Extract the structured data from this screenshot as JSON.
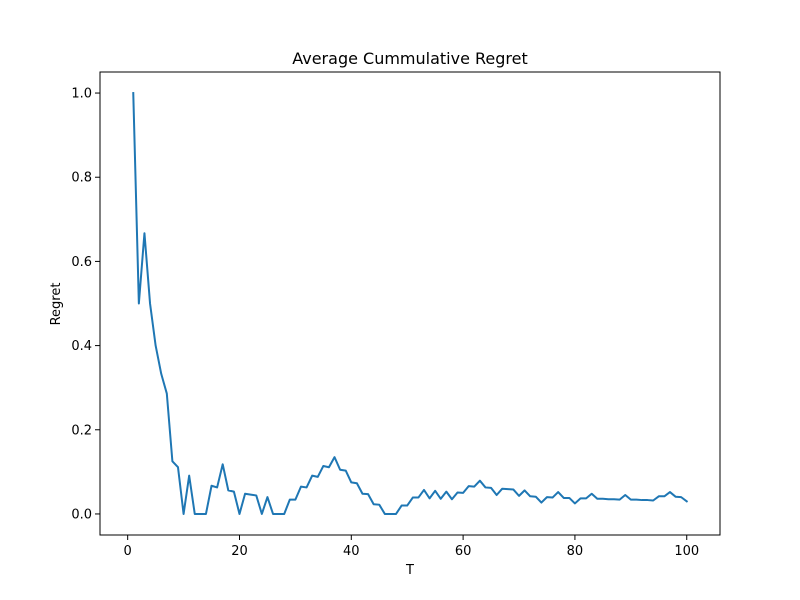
{
  "chart_data": {
    "type": "line",
    "title": "Average Cummulative Regret",
    "xlabel": "T",
    "ylabel": "Regret",
    "xlim": [
      -4.95,
      105.95
    ],
    "ylim": [
      -0.05,
      1.05
    ],
    "xticks": [
      0,
      20,
      40,
      60,
      80,
      100
    ],
    "xtick_labels": [
      "0",
      "20",
      "40",
      "60",
      "80",
      "100"
    ],
    "yticks": [
      0.0,
      0.2,
      0.4,
      0.6,
      0.8,
      1.0
    ],
    "ytick_labels": [
      "0.0",
      "0.2",
      "0.4",
      "0.6",
      "0.8",
      "1.0"
    ],
    "grid": false,
    "legend": "none",
    "series": [
      {
        "color": "#1f77b4",
        "x": [
          1,
          2,
          3,
          4,
          5,
          6,
          7,
          8,
          9,
          10,
          11,
          12,
          13,
          14,
          15,
          16,
          17,
          18,
          19,
          20,
          21,
          22,
          23,
          24,
          25,
          26,
          27,
          28,
          29,
          30,
          31,
          32,
          33,
          34,
          35,
          36,
          37,
          38,
          39,
          40,
          41,
          42,
          43,
          44,
          45,
          46,
          47,
          48,
          49,
          50,
          51,
          52,
          53,
          54,
          55,
          56,
          57,
          58,
          59,
          60,
          61,
          62,
          63,
          64,
          65,
          66,
          67,
          68,
          69,
          70,
          71,
          72,
          73,
          74,
          75,
          76,
          77,
          78,
          79,
          80,
          81,
          82,
          83,
          84,
          85,
          86,
          87,
          88,
          89,
          90,
          91,
          92,
          93,
          94,
          95,
          96,
          97,
          98,
          99,
          100
        ],
        "y": [
          1.0,
          0.5,
          0.667,
          0.5,
          0.4,
          0.333,
          0.286,
          0.125,
          0.111,
          0.0,
          0.091,
          0.0,
          0.0,
          0.0,
          0.067,
          0.063,
          0.118,
          0.056,
          0.053,
          0.0,
          0.048,
          0.046,
          0.044,
          0.0,
          0.04,
          0.0,
          0.0,
          0.0,
          0.034,
          0.034,
          0.065,
          0.063,
          0.091,
          0.088,
          0.114,
          0.111,
          0.135,
          0.105,
          0.103,
          0.075,
          0.073,
          0.048,
          0.047,
          0.023,
          0.022,
          0.0,
          0.0,
          0.0,
          0.02,
          0.02,
          0.039,
          0.039,
          0.057,
          0.037,
          0.055,
          0.036,
          0.053,
          0.035,
          0.051,
          0.05,
          0.066,
          0.065,
          0.079,
          0.063,
          0.062,
          0.045,
          0.06,
          0.059,
          0.058,
          0.043,
          0.056,
          0.042,
          0.041,
          0.027,
          0.04,
          0.039,
          0.052,
          0.038,
          0.038,
          0.025,
          0.037,
          0.037,
          0.048,
          0.036,
          0.036,
          0.035,
          0.035,
          0.034,
          0.045,
          0.034,
          0.034,
          0.033,
          0.033,
          0.032,
          0.042,
          0.042,
          0.052,
          0.041,
          0.04,
          0.03
        ]
      }
    ]
  }
}
